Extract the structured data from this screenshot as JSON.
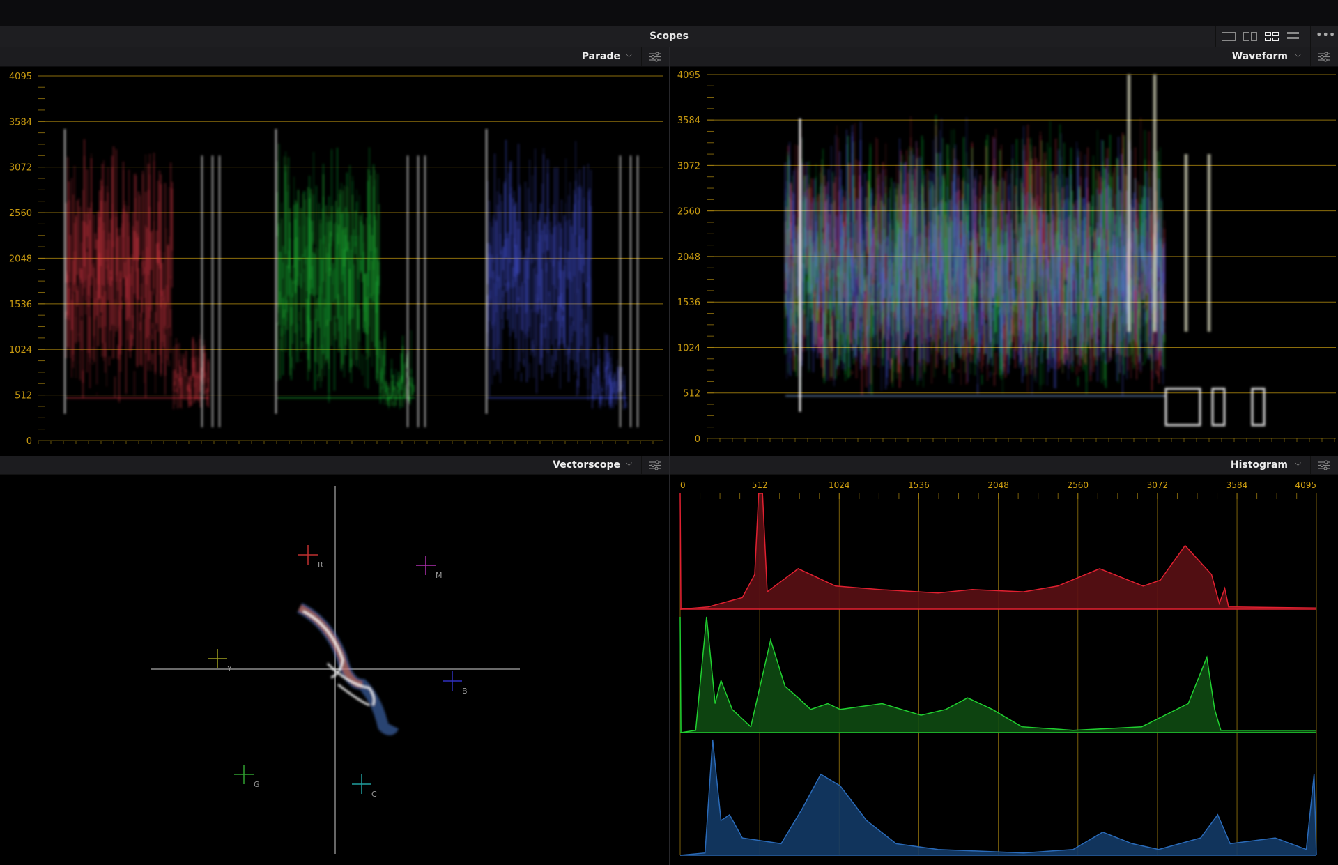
{
  "window": {
    "title": "Scopes"
  },
  "layout_buttons": [
    {
      "name": "single-view",
      "active": false
    },
    {
      "name": "dual-view",
      "active": false
    },
    {
      "name": "quad-view",
      "active": true
    },
    {
      "name": "grid-view",
      "active": false
    }
  ],
  "more_icon": "ellipsis-icon",
  "panels": {
    "top_left": {
      "mode": "Parade",
      "settings_icon": "sliders-icon"
    },
    "top_right": {
      "mode": "Waveform",
      "settings_icon": "sliders-icon"
    },
    "bottom_left": {
      "mode": "Vectorscope",
      "settings_icon": "sliders-icon"
    },
    "bottom_right": {
      "mode": "Histogram",
      "settings_icon": "sliders-icon"
    }
  },
  "scale": {
    "levels": [
      "4095",
      "3584",
      "3072",
      "2560",
      "2048",
      "1536",
      "1024",
      "512",
      "0"
    ],
    "max": 4095
  },
  "colors": {
    "accent_grid": "#b08a10",
    "red": "#ff4050",
    "green": "#20e040",
    "blue": "#5060ff",
    "histo_blue": "#2a6ab8"
  },
  "vectorscope": {
    "targets": [
      {
        "label": "R",
        "color": "#c03030"
      },
      {
        "label": "M",
        "color": "#b030b0"
      },
      {
        "label": "Y",
        "color": "#a0a020"
      },
      {
        "label": "B",
        "color": "#3030c0"
      },
      {
        "label": "G",
        "color": "#30a030"
      },
      {
        "label": "C",
        "color": "#20a0a0"
      }
    ]
  },
  "histogram": {
    "red": [
      [
        0,
        1.0
      ],
      [
        5,
        0
      ],
      [
        180,
        0.02
      ],
      [
        290,
        0.06
      ],
      [
        400,
        0.1
      ],
      [
        480,
        0.3
      ],
      [
        505,
        1.0
      ],
      [
        530,
        1.0
      ],
      [
        560,
        0.15
      ],
      [
        760,
        0.35
      ],
      [
        1000,
        0.2
      ],
      [
        1280,
        0.17
      ],
      [
        1660,
        0.14
      ],
      [
        1880,
        0.17
      ],
      [
        2210,
        0.15
      ],
      [
        2430,
        0.2
      ],
      [
        2700,
        0.35
      ],
      [
        2980,
        0.2
      ],
      [
        3090,
        0.25
      ],
      [
        3250,
        0.55
      ],
      [
        3420,
        0.3
      ],
      [
        3470,
        0.05
      ],
      [
        3505,
        0.18
      ],
      [
        3530,
        0.02
      ],
      [
        4095,
        0.01
      ]
    ],
    "green": [
      [
        0,
        1.0
      ],
      [
        5,
        0
      ],
      [
        100,
        0.02
      ],
      [
        170,
        1.0
      ],
      [
        225,
        0.25
      ],
      [
        263,
        0.45
      ],
      [
        335,
        0.2
      ],
      [
        455,
        0.05
      ],
      [
        582,
        0.8
      ],
      [
        675,
        0.4
      ],
      [
        760,
        0.3
      ],
      [
        840,
        0.2
      ],
      [
        950,
        0.25
      ],
      [
        1030,
        0.2
      ],
      [
        1300,
        0.25
      ],
      [
        1550,
        0.15
      ],
      [
        1710,
        0.2
      ],
      [
        1850,
        0.3
      ],
      [
        2010,
        0.2
      ],
      [
        2200,
        0.05
      ],
      [
        2530,
        0.02
      ],
      [
        2970,
        0.05
      ],
      [
        3270,
        0.25
      ],
      [
        3390,
        0.65
      ],
      [
        3440,
        0.2
      ],
      [
        3480,
        0.02
      ],
      [
        4095,
        0.02
      ]
    ],
    "blue": [
      [
        0,
        0
      ],
      [
        160,
        0.02
      ],
      [
        209,
        1.0
      ],
      [
        263,
        0.3
      ],
      [
        318,
        0.35
      ],
      [
        400,
        0.15
      ],
      [
        650,
        0.1
      ],
      [
        785,
        0.4
      ],
      [
        905,
        0.7
      ],
      [
        1030,
        0.6
      ],
      [
        1200,
        0.3
      ],
      [
        1390,
        0.1
      ],
      [
        1660,
        0.05
      ],
      [
        2210,
        0.02
      ],
      [
        2530,
        0.05
      ],
      [
        2720,
        0.2
      ],
      [
        2910,
        0.1
      ],
      [
        3080,
        0.05
      ],
      [
        3350,
        0.15
      ],
      [
        3460,
        0.35
      ],
      [
        3540,
        0.1
      ],
      [
        3830,
        0.15
      ],
      [
        4030,
        0.05
      ],
      [
        4080,
        0.7
      ],
      [
        4095,
        0
      ]
    ]
  }
}
